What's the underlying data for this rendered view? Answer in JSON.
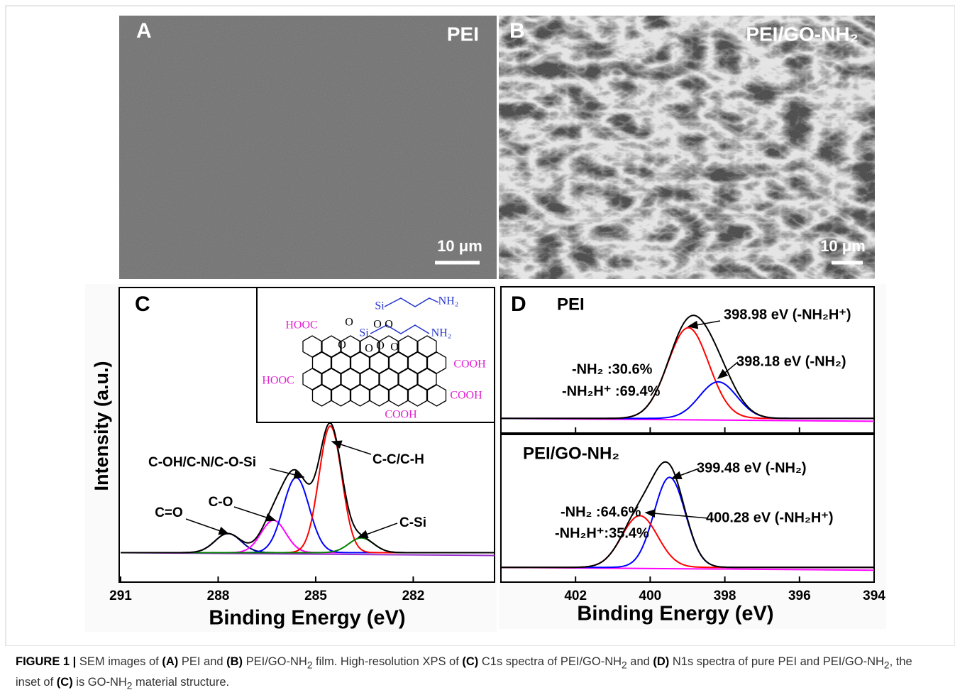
{
  "sem_panels": [
    {
      "letter": "A",
      "label": "PEI",
      "scale_bar": "10 μm"
    },
    {
      "letter": "B",
      "label": "PEI/GO-NH₂",
      "scale_bar": "10 μm"
    }
  ],
  "chart_data": [
    {
      "type": "line",
      "letter": "C",
      "xlabel": "Binding Energy (eV)",
      "ylabel": "Intensity (a.u.)",
      "xlim": [
        291,
        279.5
      ],
      "xticks": [
        291,
        288,
        285,
        282
      ],
      "ylim": [
        -20,
        180
      ],
      "envelope_color": "#000000",
      "background_color": "#9932cc",
      "peaks": [
        {
          "name": "C=O",
          "color": "#000080",
          "center": 287.7,
          "height": 13,
          "width": 0.4
        },
        {
          "name": "C-O",
          "color": "#ff00ff",
          "center": 286.3,
          "height": 22,
          "width": 0.38
        },
        {
          "name": "C-OH/C-N/C-O-Si",
          "color": "#0000ff",
          "center": 285.6,
          "height": 51,
          "width": 0.4
        },
        {
          "name": "C-C/C-H",
          "color": "#ff0000",
          "center": 284.55,
          "height": 86,
          "width": 0.35
        },
        {
          "name": "C-Si",
          "color": "#008000",
          "center": 283.6,
          "height": 10,
          "width": 0.38
        }
      ],
      "inset": {
        "labels": [
          "HOOC",
          "HOOC",
          "COOH",
          "COOH",
          "COOH",
          "Si",
          "Si",
          "NH₂",
          "NH₂",
          "O",
          "O",
          "O",
          "O",
          "O",
          "O",
          "O"
        ]
      }
    },
    {
      "type": "line",
      "letter": "D",
      "xlabel": "Binding Energy (eV)",
      "xlim": [
        404,
        394
      ],
      "xticks": [
        402,
        400,
        398,
        396,
        394
      ],
      "envelope_color": "#000000",
      "background_color": "#ff00ff",
      "subplots": [
        {
          "title": "PEI",
          "ylim": [
            -10,
            90
          ],
          "annotations": [
            "-NH₂ :30.6%",
            "-NH₂H⁺ :69.4%"
          ],
          "peaks": [
            {
              "name": "398.98 eV (-NH₂H⁺)",
              "color": "#ff0000",
              "center": 398.98,
              "height": 62,
              "width": 0.55
            },
            {
              "name": "398.18 eV (-NH₂)",
              "color": "#0000ff",
              "center": 398.18,
              "height": 25,
              "width": 0.5
            }
          ]
        },
        {
          "title": "PEI/GO-NH₂",
          "ylim": [
            -10,
            90
          ],
          "annotations": [
            "-NH₂ :64.6%",
            "-NH₂H⁺:35.4%"
          ],
          "peaks": [
            {
              "name": "399.48 eV (-NH₂)",
              "color": "#0000ff",
              "center": 399.48,
              "height": 61,
              "width": 0.42
            },
            {
              "name": "400.28 eV (-NH₂H⁺)",
              "color": "#ff0000",
              "center": 400.28,
              "height": 35,
              "width": 0.48
            }
          ]
        }
      ]
    }
  ],
  "caption": [
    "FIGURE 1 |",
    " SEM images of ",
    "(A)",
    " PEI and ",
    "(B)",
    " PEI/GO-NH",
    "2",
    " film. High-resolution XPS of ",
    "(C)",
    " C1s spectra of PEI/GO-NH",
    "2",
    " and ",
    "(D)",
    " N1s spectra of pure PEI and PEI/GO-NH",
    "2",
    ", the inset of ",
    "(C)",
    " is GO-NH",
    "2",
    " material structure."
  ]
}
